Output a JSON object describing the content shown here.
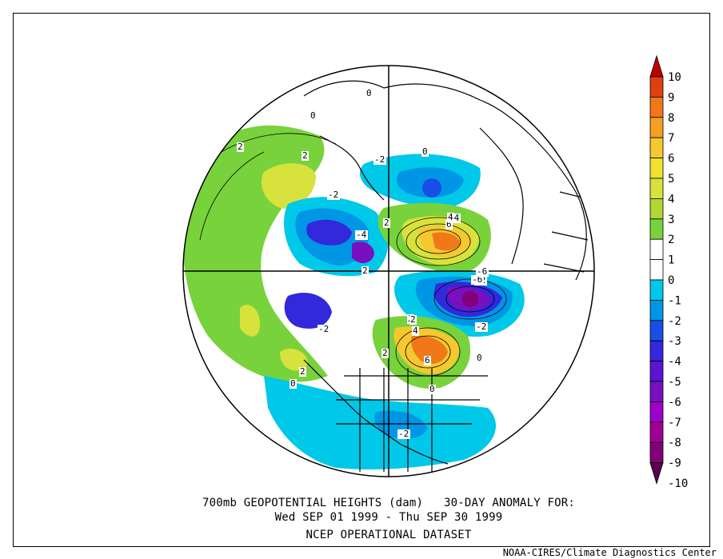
{
  "title": {
    "line1": "700mb GEOPOTENTIAL HEIGHTS (dam)   30-DAY ANOMALY FOR:",
    "line2": "Wed SEP 01 1999 - Thu SEP 30 1999",
    "line3": "NCEP OPERATIONAL DATASET"
  },
  "footer": "NOAA-CIRES/Climate Diagnostics Center",
  "colorbar": {
    "levels": [
      {
        "label": "10",
        "color": "#c00000"
      },
      {
        "label": "9",
        "color": "#e04010"
      },
      {
        "label": "8",
        "color": "#f07818"
      },
      {
        "label": "7",
        "color": "#f5a020"
      },
      {
        "label": "6",
        "color": "#f5c830"
      },
      {
        "label": "5",
        "color": "#f0e030"
      },
      {
        "label": "4",
        "color": "#d8e23c"
      },
      {
        "label": "3",
        "color": "#b0d834"
      },
      {
        "label": "2",
        "color": "#78d23c"
      },
      {
        "label": "1",
        "color": "#ffffff"
      },
      {
        "label": "0",
        "color": "#ffffff"
      },
      {
        "label": "-1",
        "color": "#00c8e8"
      },
      {
        "label": "-2",
        "color": "#0096e6"
      },
      {
        "label": "-3",
        "color": "#1a4ee6"
      },
      {
        "label": "-4",
        "color": "#3228dc"
      },
      {
        "label": "-5",
        "color": "#5a14d2"
      },
      {
        "label": "-6",
        "color": "#7810c0"
      },
      {
        "label": "-7",
        "color": "#a000c8"
      },
      {
        "label": "-8",
        "color": "#a00098"
      },
      {
        "label": "-9",
        "color": "#820078"
      },
      {
        "label": "-10",
        "color": "#5a0050"
      }
    ]
  },
  "map_labels": [
    "0",
    "2",
    "2",
    "-2",
    "-2",
    "2",
    "-4",
    "2",
    "-4",
    "6",
    "4",
    "-2",
    "2",
    "-6",
    "-6",
    "-2",
    "-2",
    "2",
    "2",
    "4",
    "6",
    "0",
    "0",
    "0",
    "-2",
    "0",
    "0",
    "2"
  ]
}
